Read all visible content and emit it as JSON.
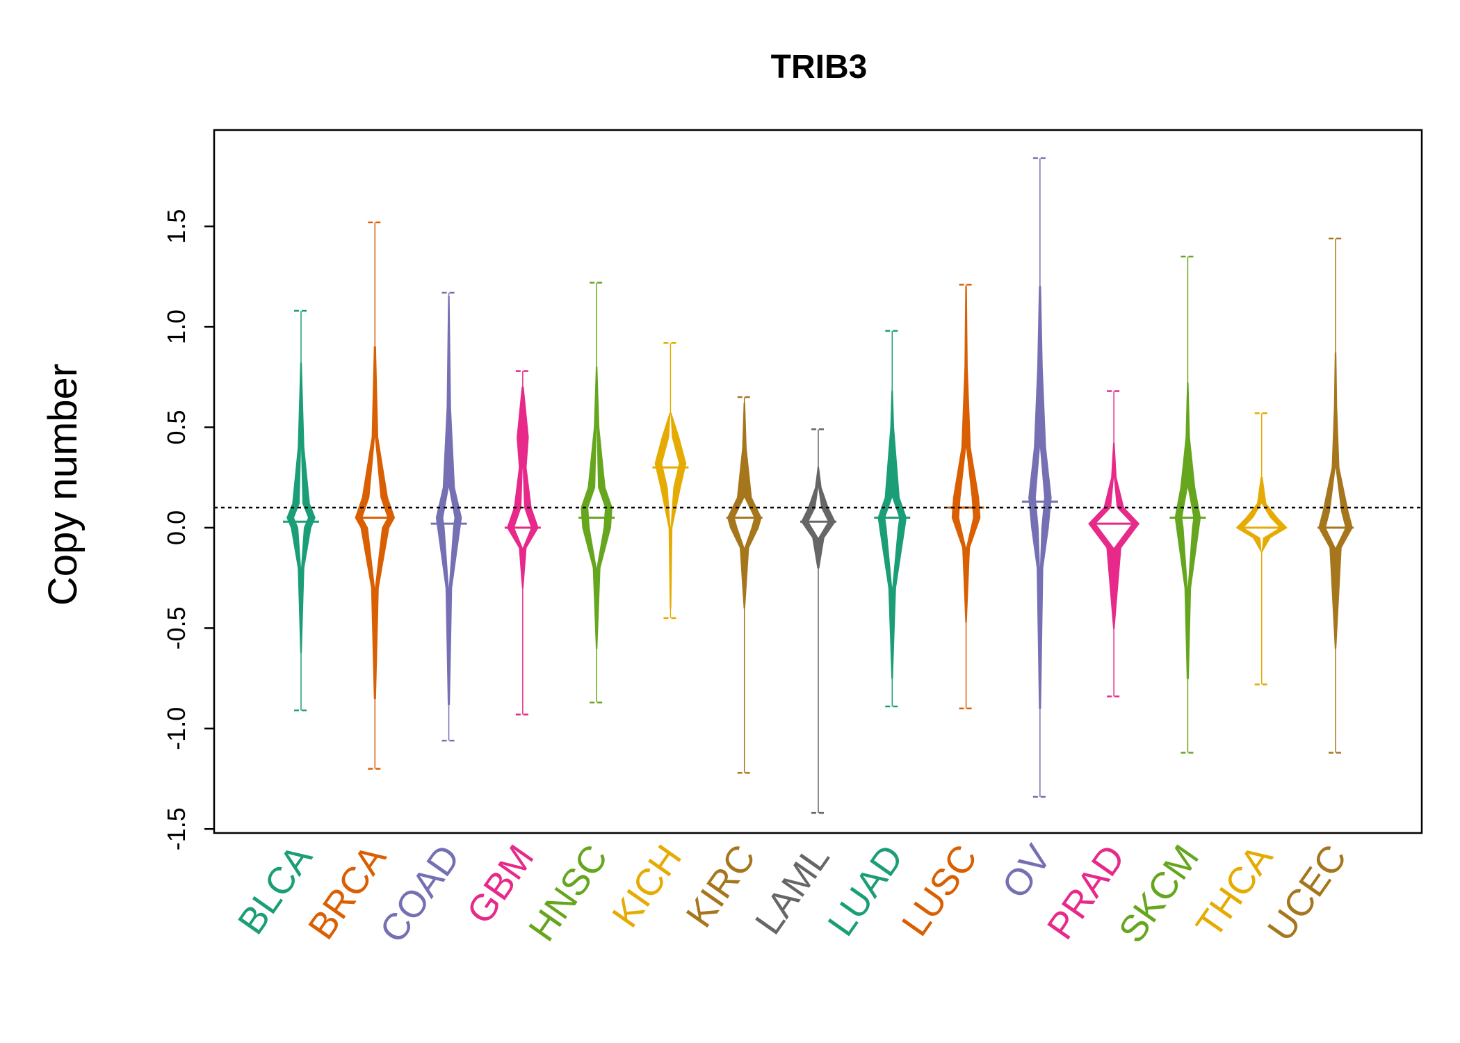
{
  "chart_data": {
    "type": "beanplot",
    "title": "TRIB3",
    "xlabel": "",
    "ylabel": "Copy number",
    "ylim": [
      -1.52,
      1.98
    ],
    "yticks": [
      "-1.5",
      "-1.0",
      "-0.5",
      "0.0",
      "0.5",
      "1.0",
      "1.5"
    ],
    "reference_line": 0.1,
    "grid": false,
    "categories": [
      "BLCA",
      "BRCA",
      "COAD",
      "GBM",
      "HNSC",
      "KICH",
      "KIRC",
      "LAML",
      "LUAD",
      "LUSC",
      "OV",
      "PRAD",
      "SKCM",
      "THCA",
      "UCEC"
    ],
    "series": [
      {
        "category": "BLCA",
        "color": "#1B9E77",
        "min": -0.91,
        "max": 1.08,
        "median": 0.03,
        "bean": [
          [
            -0.62,
            0.01
          ],
          [
            -0.2,
            0.1
          ],
          [
            0.0,
            0.35
          ],
          [
            0.05,
            0.5
          ],
          [
            0.12,
            0.3
          ],
          [
            0.4,
            0.1
          ],
          [
            0.82,
            0.01
          ]
        ]
      },
      {
        "category": "BRCA",
        "color": "#D95F02",
        "min": -1.2,
        "max": 1.52,
        "median": 0.05,
        "bean": [
          [
            -0.85,
            0.02
          ],
          [
            -0.3,
            0.12
          ],
          [
            0.0,
            0.5
          ],
          [
            0.05,
            0.7
          ],
          [
            0.15,
            0.45
          ],
          [
            0.45,
            0.1
          ],
          [
            0.9,
            0.02
          ]
        ]
      },
      {
        "category": "COAD",
        "color": "#7570B3",
        "min": -1.06,
        "max": 1.17,
        "median": 0.02,
        "bean": [
          [
            -0.88,
            0.02
          ],
          [
            -0.3,
            0.1
          ],
          [
            0.0,
            0.4
          ],
          [
            0.05,
            0.45
          ],
          [
            0.2,
            0.2
          ],
          [
            0.6,
            0.06
          ],
          [
            1.15,
            0.01
          ]
        ]
      },
      {
        "category": "GBM",
        "color": "#E7298A",
        "min": -0.93,
        "max": 0.78,
        "median": 0.0,
        "bean": [
          [
            -0.3,
            0.01
          ],
          [
            -0.1,
            0.12
          ],
          [
            0.0,
            0.55
          ],
          [
            0.1,
            0.3
          ],
          [
            0.3,
            0.12
          ],
          [
            0.45,
            0.2
          ],
          [
            0.7,
            0.02
          ]
        ]
      },
      {
        "category": "HNSC",
        "color": "#66A61E",
        "min": -0.87,
        "max": 1.22,
        "median": 0.05,
        "bean": [
          [
            -0.6,
            0.01
          ],
          [
            -0.2,
            0.12
          ],
          [
            0.0,
            0.5
          ],
          [
            0.1,
            0.55
          ],
          [
            0.2,
            0.3
          ],
          [
            0.5,
            0.08
          ],
          [
            0.8,
            0.01
          ]
        ]
      },
      {
        "category": "KICH",
        "color": "#E6AB02",
        "min": -0.45,
        "max": 0.92,
        "median": 0.3,
        "bean": [
          [
            -0.4,
            0.01
          ],
          [
            0.0,
            0.05
          ],
          [
            0.2,
            0.35
          ],
          [
            0.32,
            0.55
          ],
          [
            0.45,
            0.3
          ],
          [
            0.57,
            0.02
          ]
        ]
      },
      {
        "category": "KIRC",
        "color": "#A6761D",
        "min": -1.22,
        "max": 0.65,
        "median": 0.05,
        "bean": [
          [
            -0.4,
            0.01
          ],
          [
            -0.1,
            0.15
          ],
          [
            0.0,
            0.5
          ],
          [
            0.05,
            0.6
          ],
          [
            0.15,
            0.25
          ],
          [
            0.4,
            0.06
          ],
          [
            0.62,
            0.01
          ]
        ]
      },
      {
        "category": "LAML",
        "color": "#666666",
        "min": -1.42,
        "max": 0.49,
        "median": 0.03,
        "bean": [
          [
            -0.2,
            0.02
          ],
          [
            -0.05,
            0.2
          ],
          [
            0.03,
            0.6
          ],
          [
            0.1,
            0.35
          ],
          [
            0.2,
            0.1
          ],
          [
            0.3,
            0.01
          ]
        ]
      },
      {
        "category": "LUAD",
        "color": "#1B9E77",
        "min": -0.89,
        "max": 0.98,
        "median": 0.05,
        "bean": [
          [
            -0.75,
            0.01
          ],
          [
            -0.3,
            0.12
          ],
          [
            0.0,
            0.45
          ],
          [
            0.05,
            0.5
          ],
          [
            0.15,
            0.25
          ],
          [
            0.5,
            0.05
          ],
          [
            0.68,
            0.01
          ]
        ]
      },
      {
        "category": "LUSC",
        "color": "#D95F02",
        "min": -0.9,
        "max": 1.21,
        "median": 0.1,
        "bean": [
          [
            -0.47,
            0.01
          ],
          [
            -0.1,
            0.12
          ],
          [
            0.05,
            0.5
          ],
          [
            0.15,
            0.45
          ],
          [
            0.4,
            0.15
          ],
          [
            0.8,
            0.04
          ],
          [
            1.2,
            0.01
          ]
        ]
      },
      {
        "category": "OV",
        "color": "#7570B3",
        "min": -1.34,
        "max": 1.84,
        "median": 0.13,
        "bean": [
          [
            -0.9,
            0.02
          ],
          [
            -0.2,
            0.1
          ],
          [
            0.0,
            0.3
          ],
          [
            0.15,
            0.4
          ],
          [
            0.4,
            0.2
          ],
          [
            0.8,
            0.08
          ],
          [
            1.2,
            0.02
          ]
        ]
      },
      {
        "category": "PRAD",
        "color": "#E7298A",
        "min": -0.84,
        "max": 0.68,
        "median": 0.02,
        "bean": [
          [
            -0.5,
            0.01
          ],
          [
            -0.1,
            0.25
          ],
          [
            0.02,
            0.9
          ],
          [
            0.1,
            0.35
          ],
          [
            0.25,
            0.08
          ],
          [
            0.42,
            0.01
          ]
        ]
      },
      {
        "category": "SKCM",
        "color": "#66A61E",
        "min": -1.12,
        "max": 1.35,
        "median": 0.05,
        "bean": [
          [
            -0.75,
            0.02
          ],
          [
            -0.3,
            0.1
          ],
          [
            0.0,
            0.4
          ],
          [
            0.05,
            0.45
          ],
          [
            0.2,
            0.25
          ],
          [
            0.45,
            0.06
          ],
          [
            0.72,
            0.01
          ]
        ]
      },
      {
        "category": "THCA",
        "color": "#E6AB02",
        "min": -0.78,
        "max": 0.57,
        "median": 0.0,
        "bean": [
          [
            -0.12,
            0.01
          ],
          [
            -0.05,
            0.3
          ],
          [
            0.0,
            0.9
          ],
          [
            0.05,
            0.55
          ],
          [
            0.12,
            0.15
          ],
          [
            0.25,
            0.02
          ]
        ]
      },
      {
        "category": "UCEC",
        "color": "#A6761D",
        "min": -1.12,
        "max": 1.44,
        "median": 0.0,
        "bean": [
          [
            -0.6,
            0.01
          ],
          [
            -0.1,
            0.2
          ],
          [
            0.0,
            0.6
          ],
          [
            0.08,
            0.45
          ],
          [
            0.3,
            0.12
          ],
          [
            0.6,
            0.04
          ],
          [
            0.87,
            0.01
          ]
        ]
      }
    ]
  }
}
